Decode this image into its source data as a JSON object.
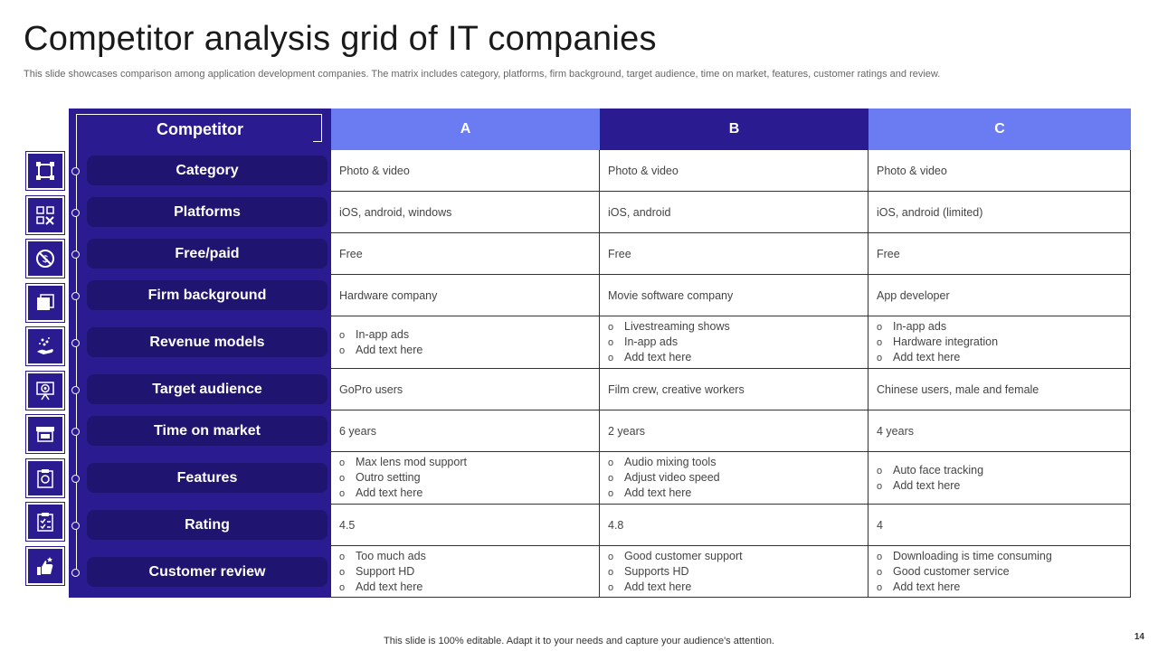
{
  "title": "Competitor analysis grid of IT companies",
  "subtitle": "This slide showcases comparison among application development companies. The matrix includes category, platforms, firm background, target audience, time on market, features, customer ratings and review.",
  "competitor_label": "Competitor",
  "columns": [
    "A",
    "B",
    "C"
  ],
  "header_colors": [
    "#6b7cf2",
    "#2b1b91",
    "#6b7cf2"
  ],
  "rows": [
    {
      "label": "Category",
      "icon": "frame-icon",
      "cells": [
        [
          "Photo & video"
        ],
        [
          "Photo & video"
        ],
        [
          "Photo & video"
        ]
      ],
      "list": false
    },
    {
      "label": "Platforms",
      "icon": "devices-icon",
      "cells": [
        [
          "iOS, android,  windows"
        ],
        [
          "iOS, android"
        ],
        [
          "iOS, android  (limited)"
        ]
      ],
      "list": false
    },
    {
      "label": "Free/paid",
      "icon": "no-dollar-icon",
      "cells": [
        [
          "Free"
        ],
        [
          "Free"
        ],
        [
          "Free"
        ]
      ],
      "list": false
    },
    {
      "label": "Firm background",
      "icon": "layers-icon",
      "cells": [
        [
          "Hardware  company"
        ],
        [
          "Movie  software  company"
        ],
        [
          "App developer"
        ]
      ],
      "list": false
    },
    {
      "label": "Revenue models",
      "icon": "hand-coins-icon",
      "cells": [
        [
          "In-app  ads",
          "Add text here"
        ],
        [
          "Livestreaming  shows",
          "In-app  ads",
          "Add text here"
        ],
        [
          "In-app  ads",
          "Hardware  integration",
          "Add text here"
        ]
      ],
      "list": true
    },
    {
      "label": "Target audience",
      "icon": "target-board-icon",
      "cells": [
        [
          "GoPro users"
        ],
        [
          "Film crew, creative  workers"
        ],
        [
          "Chinese users, male and female"
        ]
      ],
      "list": false
    },
    {
      "label": "Time on market",
      "icon": "store-icon",
      "cells": [
        [
          "6 years"
        ],
        [
          "2 years"
        ],
        [
          "4 years"
        ]
      ],
      "list": false
    },
    {
      "label": "Features",
      "icon": "clipboard-icon",
      "cells": [
        [
          "Max lens mod support",
          "Outro  setting",
          "Add text here"
        ],
        [
          "Audio mixing tools",
          "Adjust video  speed",
          "Add text here"
        ],
        [
          "Auto face tracking",
          "Add text here"
        ]
      ],
      "list": true
    },
    {
      "label": "Rating",
      "icon": "checklist-icon",
      "cells": [
        [
          "4.5"
        ],
        [
          "4.8"
        ],
        [
          "4"
        ]
      ],
      "list": false
    },
    {
      "label": "Customer review",
      "icon": "thumbs-up-stars-icon",
      "cells": [
        [
          "Too much ads",
          "Support HD",
          "Add text here"
        ],
        [
          "Good customer support",
          "Supports HD",
          "Add text here"
        ],
        [
          "Downloading  is time consuming",
          "Good customer service",
          "Add text here"
        ]
      ],
      "list": true
    }
  ],
  "footer": "This slide is 100% editable.  Adapt it to your needs and capture your audience's attention.",
  "page_number": "14"
}
